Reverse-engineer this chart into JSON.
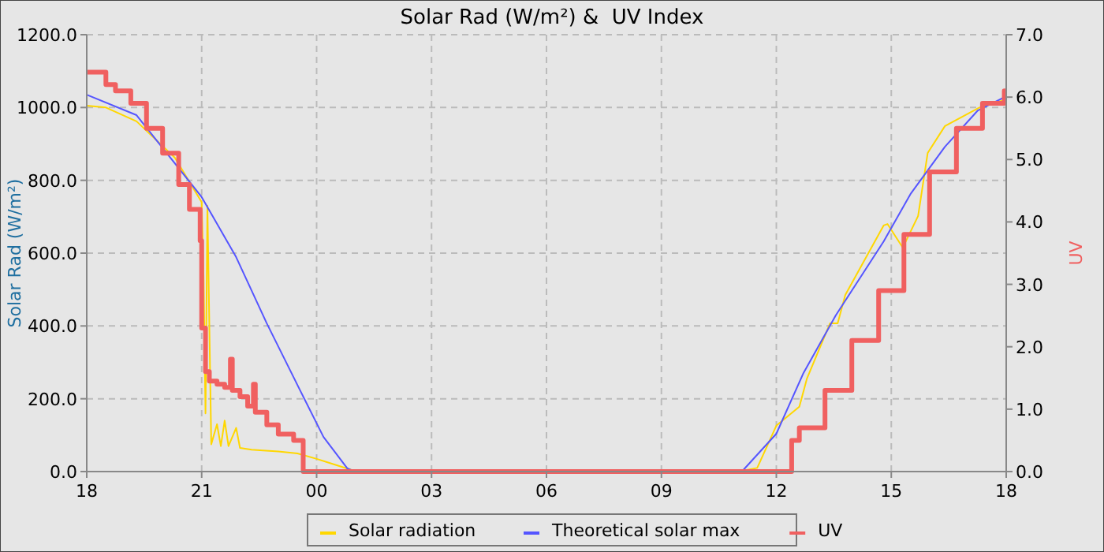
{
  "chart_data": {
    "type": "line",
    "title": "Solar Rad (W/m²) &  UV Index",
    "ylabel": "Solar Rad (W/m²)",
    "y2label": "UV",
    "xlim": [
      18,
      42
    ],
    "xticks": [
      {
        "value": 18,
        "label": "18"
      },
      {
        "value": 21,
        "label": "21"
      },
      {
        "value": 24,
        "label": "00"
      },
      {
        "value": 27,
        "label": "03"
      },
      {
        "value": 30,
        "label": "06"
      },
      {
        "value": 33,
        "label": "09"
      },
      {
        "value": 36,
        "label": "12"
      },
      {
        "value": 39,
        "label": "15"
      },
      {
        "value": 42,
        "label": "18"
      }
    ],
    "ylim": [
      0,
      1200
    ],
    "yticks": [
      {
        "value": 0,
        "label": "0.0"
      },
      {
        "value": 200,
        "label": "200.0"
      },
      {
        "value": 400,
        "label": "400.0"
      },
      {
        "value": 600,
        "label": "600.0"
      },
      {
        "value": 800,
        "label": "800.0"
      },
      {
        "value": 1000,
        "label": "1000.0"
      },
      {
        "value": 1200,
        "label": "1200.0"
      }
    ],
    "y2lim": [
      0,
      7
    ],
    "y2ticks": [
      {
        "value": 0,
        "label": "0.0"
      },
      {
        "value": 1,
        "label": "1.0"
      },
      {
        "value": 2,
        "label": "2.0"
      },
      {
        "value": 3,
        "label": "3.0"
      },
      {
        "value": 4,
        "label": "4.0"
      },
      {
        "value": 5,
        "label": "5.0"
      },
      {
        "value": 6,
        "label": "6.0"
      },
      {
        "value": 7,
        "label": "7.0"
      }
    ],
    "grid": true,
    "legend": "bottom",
    "line_style": "solid",
    "series": [
      {
        "name": "Solar radiation",
        "color": "#ffd700",
        "x": [
          18,
          18.5,
          19.3,
          20.3,
          21,
          21.05,
          21.1,
          21.15,
          21.25,
          21.4,
          21.5,
          21.6,
          21.7,
          21.9,
          22,
          22.3,
          22.6,
          23,
          23.5,
          24,
          24.3,
          24.9,
          25.2,
          35,
          35.5,
          36,
          36.6,
          36.8,
          37.4,
          37.6,
          37.8,
          38.8,
          38.9,
          39.3,
          39.7,
          39.95,
          40.4,
          41.3,
          42
        ],
        "values": [
          1005,
          1000,
          962,
          862,
          740,
          530,
          160,
          730,
          75,
          130,
          70,
          140,
          70,
          120,
          65,
          60,
          58,
          55,
          50,
          35,
          25,
          5,
          0,
          0,
          10,
          126,
          178,
          256,
          407,
          407,
          485,
          676,
          680,
          615,
          702,
          875,
          949,
          1000,
          1022
        ]
      },
      {
        "name": "Theoretical solar max",
        "color": "#5555ff",
        "x": [
          18,
          19.3,
          21,
          21.9,
          22.7,
          23.56,
          24.18,
          24.8,
          25,
          35.1,
          36,
          36.7,
          37.55,
          38.8,
          39.5,
          40.4,
          41.26,
          42
        ],
        "values": [
          1035,
          979,
          754,
          589,
          407,
          225,
          95,
          9,
          0,
          0,
          104,
          269,
          429,
          632,
          762,
          892,
          992,
          1031
        ]
      },
      {
        "name": "UV",
        "color": "#f06060",
        "type": "step",
        "axis": "y2",
        "x": [
          18,
          18.5,
          18.75,
          19.15,
          19.56,
          19.98,
          20.4,
          20.68,
          20.96,
          21,
          21.1,
          21.2,
          21.4,
          21.6,
          21.75,
          21.8,
          22,
          22.2,
          22.35,
          22.4,
          22.7,
          23,
          23.4,
          23.65,
          36.4,
          36.6,
          37.27,
          37.97,
          38.67,
          39.33,
          40,
          40.7,
          41.38,
          41.95,
          42
        ],
        "values": [
          6.4,
          6.2,
          6.1,
          5.9,
          5.5,
          5.1,
          4.6,
          4.2,
          3.7,
          2.3,
          1.6,
          1.45,
          1.4,
          1.35,
          1.8,
          1.3,
          1.2,
          1.05,
          1.4,
          0.95,
          0.75,
          0.6,
          0.5,
          0,
          0.5,
          0.7,
          1.3,
          2.1,
          2.9,
          3.8,
          4.8,
          5.5,
          5.9,
          6.1,
          6.1
        ]
      }
    ]
  }
}
